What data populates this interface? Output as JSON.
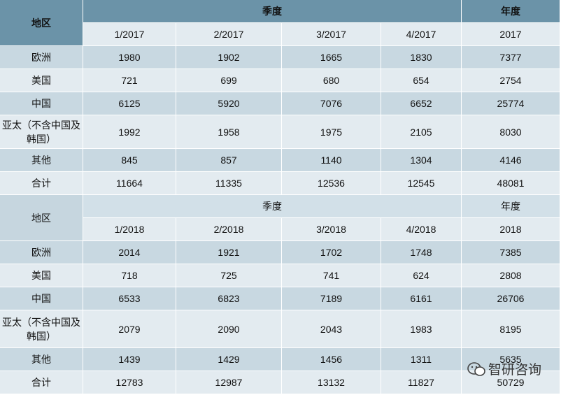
{
  "tables": [
    {
      "header": {
        "region": "地区",
        "quarter": "季度",
        "year": "年度",
        "periods": [
          "1/2017",
          "2/2017",
          "3/2017",
          "4/2017",
          "2017"
        ]
      },
      "rows": [
        [
          "欧洲",
          1980,
          1902,
          1665,
          1830,
          7377
        ],
        [
          "美国",
          721,
          699,
          680,
          654,
          2754
        ],
        [
          "中国",
          6125,
          5920,
          7076,
          6652,
          25774
        ],
        [
          "亚太（不含中国及韩国）",
          1992,
          1958,
          1975,
          2105,
          8030
        ],
        [
          "其他",
          845,
          857,
          1140,
          1304,
          4146
        ],
        [
          "合计",
          11664,
          11335,
          12536,
          12545,
          48081
        ]
      ]
    },
    {
      "header": {
        "region": "地区",
        "quarter": "季度",
        "year": "年度",
        "periods": [
          "1/2018",
          "2/2018",
          "3/2018",
          "4/2018",
          "2018"
        ]
      },
      "rows": [
        [
          "欧洲",
          2014,
          1921,
          1702,
          1748,
          7385
        ],
        [
          "美国",
          718,
          725,
          741,
          624,
          2808
        ],
        [
          "中国",
          6533,
          6823,
          7189,
          6161,
          26706
        ],
        [
          "亚太（不含中国及韩国）",
          2079,
          2090,
          2043,
          1983,
          8195
        ],
        [
          "其他",
          1439,
          1429,
          1456,
          1311,
          5635
        ],
        [
          "合计",
          12783,
          12987,
          13132,
          11827,
          50729
        ]
      ]
    }
  ],
  "watermark": "智研咨询"
}
